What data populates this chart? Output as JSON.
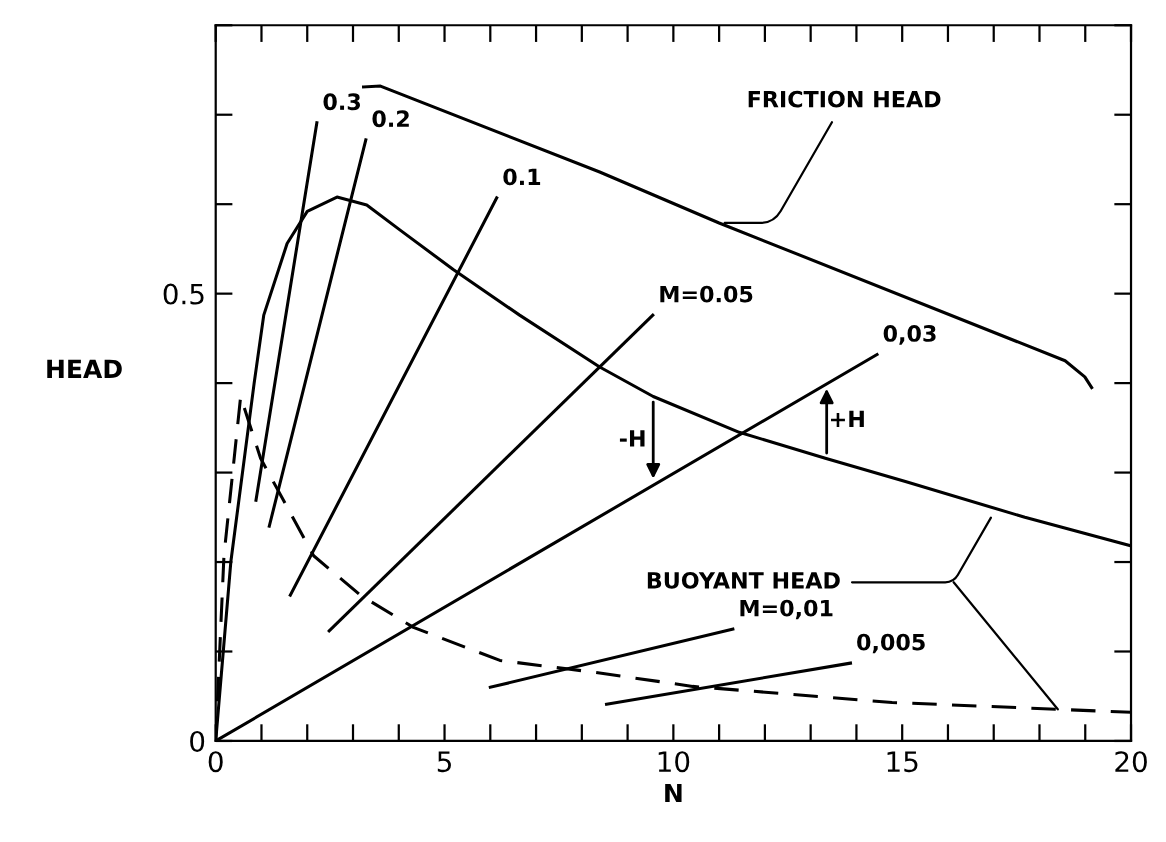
{
  "chart_data": {
    "type": "line",
    "xlabel": "N",
    "ylabel": "HEAD",
    "xlim": [
      0,
      20
    ],
    "ylim": [
      0,
      0.8
    ],
    "xticks": [
      0,
      {
        "value": 1,
        "label": null
      },
      {
        "value": 2,
        "label": null
      },
      {
        "value": 3,
        "label": null
      },
      {
        "value": 4,
        "label": null
      },
      5,
      {
        "value": 6,
        "label": null
      },
      {
        "value": 7,
        "label": null
      },
      {
        "value": 8,
        "label": null
      },
      {
        "value": 9,
        "label": null
      },
      10,
      {
        "value": 11,
        "label": null
      },
      {
        "value": 12,
        "label": null
      },
      {
        "value": 13,
        "label": null
      },
      {
        "value": 14,
        "label": null
      },
      15,
      {
        "value": 16,
        "label": null
      },
      {
        "value": 17,
        "label": null
      },
      {
        "value": 18,
        "label": null
      },
      {
        "value": 19,
        "label": null
      },
      20
    ],
    "yticks": [
      0,
      {
        "value": 0.1,
        "label": null
      },
      {
        "value": 0.2,
        "label": null
      },
      {
        "value": 0.3,
        "label": null
      },
      {
        "value": 0.4,
        "label": null
      },
      0.5,
      {
        "value": 0.6,
        "label": null
      },
      {
        "value": 0.7,
        "label": null
      },
      {
        "value": 0.8,
        "label": null
      }
    ],
    "grid": false,
    "legend": false,
    "marker": "none",
    "series": [
      {
        "color": "#000000",
        "line_style": "solid",
        "x": [
          0,
          0.33,
          0.84,
          1.05,
          1.56,
          2.0,
          2.65,
          3.3,
          4.03,
          5.19,
          6.64,
          8.39,
          9.56,
          11.44,
          13.32,
          15.07,
          17.68,
          20.0
        ],
        "values": [
          0,
          0.2,
          0.4,
          0.476,
          0.556,
          0.592,
          0.608,
          0.599,
          0.571,
          0.527,
          0.476,
          0.418,
          0.385,
          0.345,
          0.316,
          0.29,
          0.25,
          0.218
        ]
      },
      {
        "color": "#000000",
        "line_style": "dashed",
        "x": [
          0,
          0.18,
          0.545,
          0.98,
          2.14,
          3.16,
          4.32,
          6.21,
          8.39,
          10.42,
          14.78,
          20.0
        ],
        "values": [
          0,
          0.207,
          0.385,
          0.316,
          0.207,
          0.163,
          0.127,
          0.09,
          0.076,
          0.061,
          0.043,
          0.032
        ]
      },
      {
        "color": "#000000",
        "line_style": "solid",
        "x": [
          3.23,
          3.6,
          8.39,
          11.0,
          18.56,
          18.99,
          19.14
        ],
        "values": [
          0.731,
          0.732,
          0.636,
          0.579,
          0.425,
          0.407,
          0.395
        ]
      },
      {
        "name": "0.3",
        "color": "#000000",
        "line_style": "solid",
        "x": [
          0.88,
          2.21
        ],
        "values": [
          0.269,
          0.691
        ]
      },
      {
        "name": "0.2",
        "color": "#000000",
        "line_style": "solid",
        "x": [
          1.17,
          3.28
        ],
        "values": [
          0.24,
          0.672
        ]
      },
      {
        "name": "0.1",
        "color": "#000000",
        "line_style": "solid",
        "x": [
          1.63,
          6.14
        ],
        "values": [
          0.163,
          0.607
        ]
      },
      {
        "name": "M=0.05",
        "color": "#000000",
        "line_style": "solid",
        "x": [
          2.48,
          9.55
        ],
        "values": [
          0.123,
          0.476
        ]
      },
      {
        "name": "0,03",
        "color": "#000000",
        "line_style": "solid",
        "x": [
          0,
          14.45
        ],
        "values": [
          0,
          0.432
        ]
      },
      {
        "name": "M=0,01",
        "color": "#000000",
        "line_style": "solid",
        "x": [
          6.0,
          11.3
        ],
        "values": [
          0.06,
          0.125
        ]
      },
      {
        "name": "0,005",
        "color": "#000000",
        "line_style": "solid",
        "x": [
          8.54,
          13.87
        ],
        "values": [
          0.041,
          0.087
        ]
      }
    ],
    "annotations": [
      {
        "text": "FRICTION HEAD",
        "x": 11.0,
        "y": 0.579
      },
      {
        "text": "BUOYANT HEAD",
        "x": 17.0,
        "y": 0.255
      },
      {
        "text": "-H",
        "x": 9.56,
        "y": 0.287
      },
      {
        "text": "+H",
        "x": 13.35,
        "y": 0.4
      }
    ]
  }
}
